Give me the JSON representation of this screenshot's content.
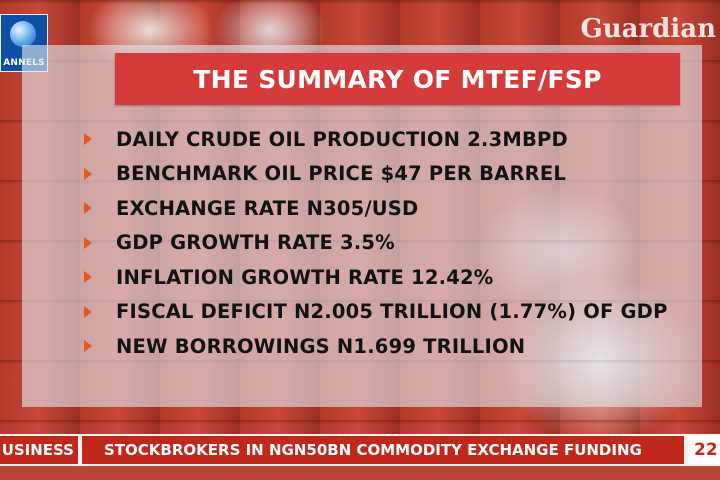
{
  "channel": {
    "logo_text": "ANNELS",
    "watermark": "Guardian"
  },
  "summary": {
    "title": "THE SUMMARY OF MTEF/FSP",
    "items": [
      "DAILY CRUDE OIL PRODUCTION 2.3MBPD",
      "BENCHMARK OIL PRICE $47 PER BARREL",
      "EXCHANGE RATE N305/USD",
      "GDP GROWTH RATE 3.5%",
      "INFLATION GROWTH RATE 12.42%",
      "FISCAL DEFICIT N2.005 TRILLION (1.77%) OF GDP",
      "NEW BORROWINGS N1.699 TRILLION"
    ],
    "bullet_color": "#e05a1e",
    "title_bg": "#d63b3b"
  },
  "ticker": {
    "section": "USINESS",
    "headline": "STOCKBROKERS IN NGN50BN COMMODITY EXCHANGE FUNDING",
    "time": "22",
    "accent": "#c0281c"
  }
}
